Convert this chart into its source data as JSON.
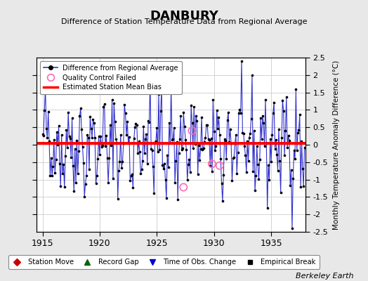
{
  "title": "DANBURY",
  "subtitle": "Difference of Station Temperature Data from Regional Average",
  "ylabel": "Monthly Temperature Anomaly Difference (°C)",
  "xlabel_years": [
    1915,
    1920,
    1925,
    1930,
    1935
  ],
  "xlim": [
    1914.5,
    1938.0
  ],
  "ylim": [
    -2.5,
    2.5
  ],
  "yticks": [
    -2,
    -1.5,
    -1,
    -0.5,
    0,
    0.5,
    1,
    1.5,
    2
  ],
  "ytick_labels": [
    "-2",
    "-1.5",
    "-1",
    "-0.5",
    "0",
    "0.5",
    "1",
    "1.5",
    "2"
  ],
  "yticks_right": [
    -2.5,
    -2,
    -1.5,
    -1,
    -0.5,
    0,
    0.5,
    1,
    1.5,
    2,
    2.5
  ],
  "ytick_labels_right": [
    "-2.5",
    "-2",
    "-1.5",
    "-1",
    "-0.5",
    "0",
    "0.5",
    "1",
    "1.5",
    "2",
    "2.5"
  ],
  "bias_value": 0.05,
  "line_color": "#3333cc",
  "dot_color": "#000000",
  "bias_color": "#ff0000",
  "qc_color": "#ff69b4",
  "background_color": "#e8e8e8",
  "plot_bg_color": "#ffffff",
  "credit": "Berkeley Earth",
  "legend2_items": [
    {
      "label": "Station Move",
      "color": "#cc0000",
      "marker": "D"
    },
    {
      "label": "Record Gap",
      "color": "#006600",
      "marker": "^"
    },
    {
      "label": "Time of Obs. Change",
      "color": "#0000cc",
      "marker": "v"
    },
    {
      "label": "Empirical Break",
      "color": "#000000",
      "marker": "s"
    }
  ],
  "seed": 42,
  "n_years": 23,
  "start_year": 1915,
  "qc_failures": [
    {
      "year": 1927.33,
      "value": -1.22
    },
    {
      "year": 1928.08,
      "value": 0.4
    },
    {
      "year": 1929.83,
      "value": -0.55
    },
    {
      "year": 1930.5,
      "value": -0.6
    }
  ]
}
